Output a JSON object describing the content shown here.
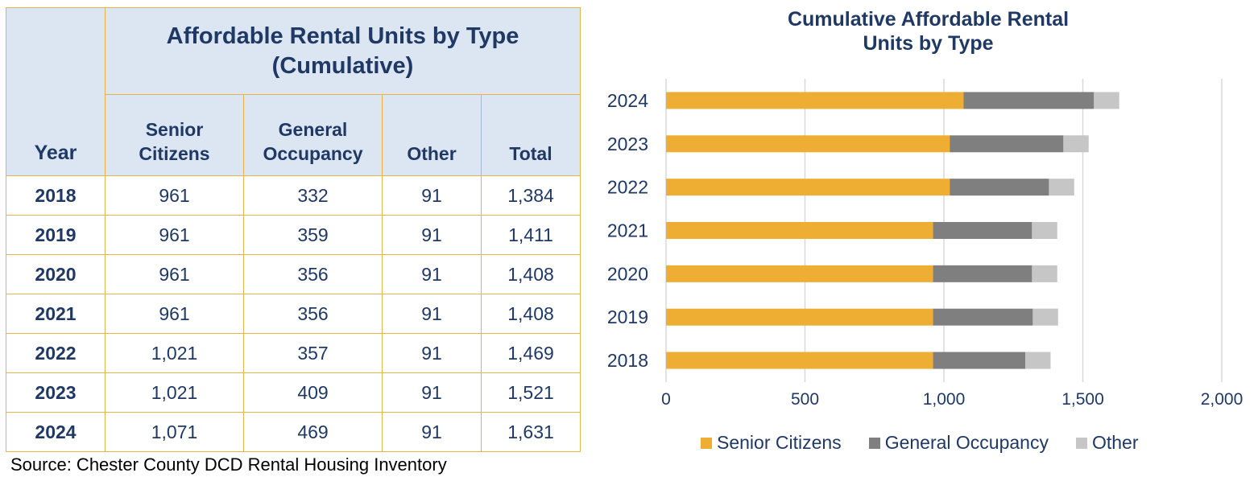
{
  "table": {
    "title_line1": "Affordable Rental Units by Type",
    "title_line2": "(Cumulative)",
    "year_header": "Year",
    "col_senior_line1": "Senior",
    "col_senior_line2": "Citizens",
    "col_general_line1": "General",
    "col_general_line2": "Occupancy",
    "col_other": "Other",
    "col_total": "Total",
    "rows": [
      {
        "year": "2018",
        "senior": "961",
        "general": "332",
        "other": "91",
        "total": "1,384"
      },
      {
        "year": "2019",
        "senior": "961",
        "general": "359",
        "other": "91",
        "total": "1,411"
      },
      {
        "year": "2020",
        "senior": "961",
        "general": "356",
        "other": "91",
        "total": "1,408"
      },
      {
        "year": "2021",
        "senior": "961",
        "general": "356",
        "other": "91",
        "total": "1,408"
      },
      {
        "year": "2022",
        "senior": "1,021",
        "general": "357",
        "other": "91",
        "total": "1,469"
      },
      {
        "year": "2023",
        "senior": "1,021",
        "general": "409",
        "other": "91",
        "total": "1,521"
      },
      {
        "year": "2024",
        "senior": "1,071",
        "general": "469",
        "other": "91",
        "total": "1,631"
      }
    ],
    "source": "Source: Chester County DCD Rental Housing Inventory"
  },
  "chart_data": {
    "type": "bar",
    "orientation": "horizontal",
    "stacked": true,
    "title_line1": "Cumulative Affordable Rental",
    "title_line2": "Units by Type",
    "categories": [
      "2024",
      "2023",
      "2022",
      "2021",
      "2020",
      "2019",
      "2018"
    ],
    "series": [
      {
        "name": "Senior Citizens",
        "color": "#EDAE33",
        "values": [
          1071,
          1021,
          1021,
          961,
          961,
          961,
          961
        ]
      },
      {
        "name": "General Occupancy",
        "color": "#7F7F7F",
        "values": [
          469,
          409,
          357,
          356,
          356,
          359,
          332
        ]
      },
      {
        "name": "Other",
        "color": "#C6C6C6",
        "values": [
          91,
          91,
          91,
          91,
          91,
          91,
          91
        ]
      }
    ],
    "xlim": [
      0,
      2000
    ],
    "xticks": [
      0,
      500,
      1000,
      1500,
      2000
    ],
    "xtick_labels": [
      "0",
      "500",
      "1,000",
      "1,500",
      "2,000"
    ],
    "grid": true,
    "legend": "bottom"
  }
}
